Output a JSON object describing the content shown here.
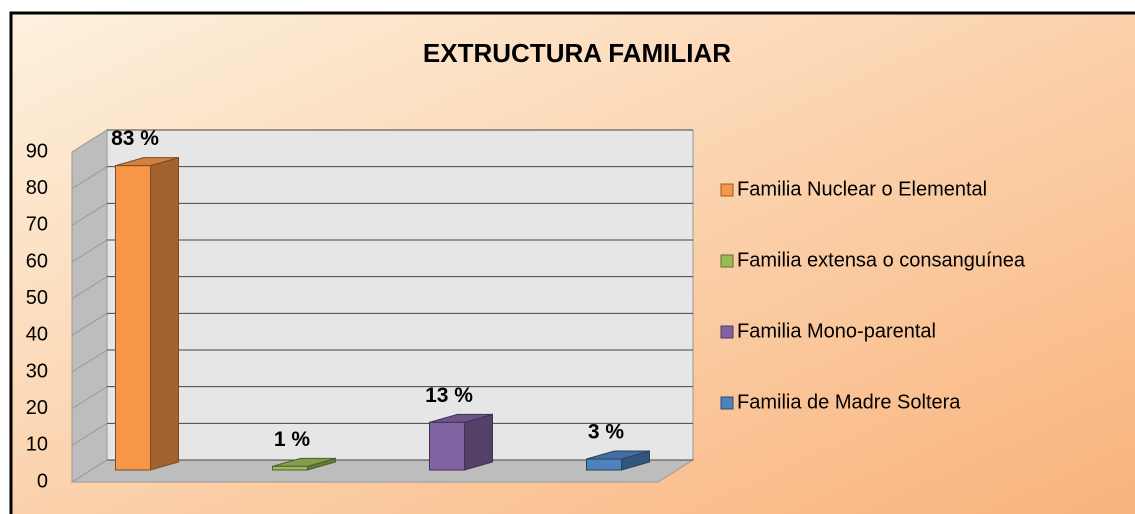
{
  "chart_data": {
    "type": "bar3d",
    "title": "EXTRUCTURA FAMILIAR",
    "series": [
      {
        "name": "Familia Nuclear o Elemental",
        "color": "#f79646",
        "values": [
          83
        ],
        "value_labels": [
          "83 %"
        ]
      },
      {
        "name": "Familia extensa o consanguínea",
        "color": "#9bbb59",
        "values": [
          1
        ],
        "value_labels": [
          "1 %"
        ]
      },
      {
        "name": "Familia Mono-parental",
        "color": "#8064a2",
        "values": [
          13
        ],
        "value_labels": [
          "13 %"
        ]
      },
      {
        "name": "Familia de Madre Soltera",
        "color": "#4f81bd",
        "values": [
          3
        ],
        "value_labels": [
          "3 %"
        ]
      }
    ],
    "ylim": [
      0,
      90
    ],
    "yticks": [
      0,
      10,
      20,
      30,
      40,
      50,
      60,
      70,
      80,
      90
    ],
    "grid": true,
    "legend": "right"
  }
}
